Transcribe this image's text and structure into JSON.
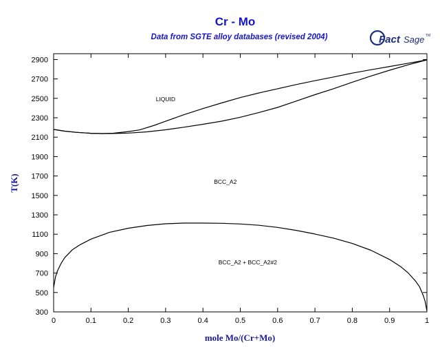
{
  "chart_data": {
    "type": "line",
    "title": "Cr - Mo",
    "subtitle": "Data from SGTE alloy databases (revised 2004)",
    "xlabel": "mole Mo/(Cr+Mo)",
    "ylabel": "T(K)",
    "xlim": [
      0,
      1
    ],
    "ylim": [
      300,
      2960
    ],
    "xticks": [
      "0",
      "0.1",
      "0.2",
      "0.3",
      "0.4",
      "0.5",
      "0.6",
      "0.7",
      "0.8",
      "0.9",
      "1"
    ],
    "yticks": [
      "300",
      "500",
      "700",
      "900",
      "1100",
      "1300",
      "1500",
      "1700",
      "1900",
      "2100",
      "2300",
      "2500",
      "2700",
      "2900"
    ],
    "grid": false,
    "region_labels": [
      {
        "text": "LIQUID",
        "x": 0.3,
        "y": 2470
      },
      {
        "text": "BCC_A2",
        "x": 0.46,
        "y": 1620
      },
      {
        "text": "BCC_A2 + BCC_A2#2",
        "x": 0.52,
        "y": 790
      }
    ],
    "series": [
      {
        "x": [
          0,
          0.03,
          0.06,
          0.1,
          0.13,
          0.16,
          0.2,
          0.23,
          0.27,
          0.3,
          0.35,
          0.4,
          0.45,
          0.5,
          0.55,
          0.6,
          0.65,
          0.7,
          0.75,
          0.8,
          0.85,
          0.9,
          0.95,
          1.0
        ],
        "y": [
          2180,
          2162,
          2150,
          2140,
          2137,
          2141,
          2158,
          2175,
          2222,
          2264,
          2333,
          2395,
          2453,
          2508,
          2556,
          2599,
          2642,
          2682,
          2720,
          2760,
          2795,
          2828,
          2862,
          2896
        ]
      },
      {
        "x": [
          0,
          0.03,
          0.06,
          0.1,
          0.13,
          0.16,
          0.2,
          0.25,
          0.3,
          0.35,
          0.4,
          0.45,
          0.5,
          0.55,
          0.6,
          0.65,
          0.7,
          0.75,
          0.8,
          0.85,
          0.9,
          0.95,
          1.0
        ],
        "y": [
          2180,
          2162,
          2150,
          2140,
          2137,
          2138,
          2142,
          2155,
          2176,
          2203,
          2233,
          2265,
          2305,
          2354,
          2407,
          2472,
          2538,
          2600,
          2666,
          2730,
          2790,
          2846,
          2896
        ]
      },
      {
        "x": [
          0,
          0.005,
          0.01,
          0.02,
          0.03,
          0.05,
          0.07,
          0.1,
          0.15,
          0.2,
          0.25,
          0.3,
          0.35,
          0.4,
          0.45,
          0.5,
          0.55,
          0.6,
          0.65,
          0.7,
          0.75,
          0.8,
          0.85,
          0.9,
          0.93,
          0.95,
          0.97,
          0.98,
          0.99,
          0.995,
          1.0
        ],
        "y": [
          550,
          660,
          720,
          800,
          860,
          940,
          990,
          1050,
          1120,
          1162,
          1190,
          1208,
          1215,
          1215,
          1213,
          1206,
          1192,
          1170,
          1140,
          1102,
          1060,
          1005,
          935,
          840,
          765,
          700,
          615,
          560,
          470,
          410,
          310
        ]
      }
    ]
  },
  "logo": {
    "text_bold": "Fact",
    "text_rest": "Sage",
    "text_mark": "TM",
    "color": "#1c2e7c"
  }
}
